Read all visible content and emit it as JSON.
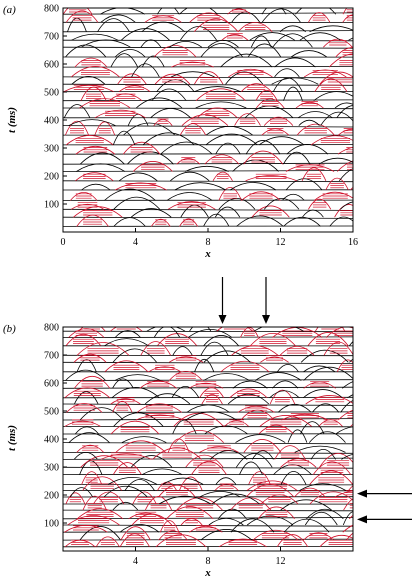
{
  "figure": {
    "panels": [
      {
        "label": "(a)",
        "xlabel": "x",
        "ylabel": "t (ms)",
        "xticks": [
          "0",
          "4",
          "8",
          "12",
          "16"
        ],
        "yticks": [
          "100",
          "200",
          "300",
          "400",
          "500",
          "600",
          "700",
          "800"
        ],
        "xlim": [
          0,
          16
        ],
        "ylim": [
          0,
          800
        ]
      },
      {
        "label": "(b)",
        "xlabel": "x",
        "ylabel": "t (ms)",
        "xticks": [
          "4",
          "8",
          "12"
        ],
        "yticks": [
          "100",
          "200",
          "300",
          "400",
          "500",
          "600",
          "700",
          "800"
        ],
        "xlim": [
          0,
          16
        ],
        "ylim": [
          0,
          800
        ],
        "annotations": {
          "down_arrows_at_x": [
            8.8,
            11.2
          ],
          "left_arrows_at_t": [
            205,
            113
          ]
        }
      }
    ],
    "colors": {
      "contour_black": "#000000",
      "contour_red": "#d0102a"
    }
  }
}
